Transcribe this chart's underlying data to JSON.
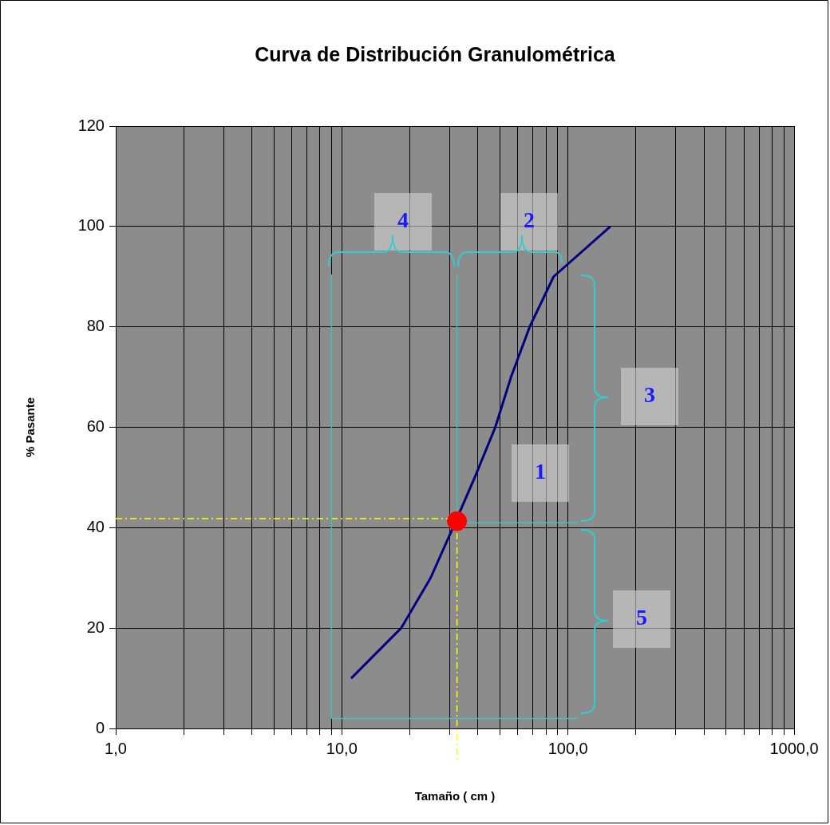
{
  "chart_data": {
    "type": "line",
    "title": "Curva de Distribución Granulométrica",
    "xlabel": "Tamaño ( cm )",
    "ylabel": "% Pasante",
    "log": "x",
    "grid": true,
    "legend": false,
    "xlim": [
      1,
      1000
    ],
    "xticks": [
      {
        "value": 1,
        "label": "1,0"
      },
      {
        "value": 2,
        "label": null
      },
      {
        "value": 3,
        "label": null
      },
      {
        "value": 4,
        "label": null
      },
      {
        "value": 5,
        "label": null
      },
      {
        "value": 6,
        "label": null
      },
      {
        "value": 7,
        "label": null
      },
      {
        "value": 8,
        "label": null
      },
      {
        "value": 9,
        "label": null
      },
      {
        "value": 10,
        "label": "10,0"
      },
      {
        "value": 20,
        "label": null
      },
      {
        "value": 30,
        "label": null
      },
      {
        "value": 40,
        "label": null
      },
      {
        "value": 50,
        "label": null
      },
      {
        "value": 60,
        "label": null
      },
      {
        "value": 70,
        "label": null
      },
      {
        "value": 80,
        "label": null
      },
      {
        "value": 90,
        "label": null
      },
      {
        "value": 100,
        "label": "100,0"
      },
      {
        "value": 200,
        "label": null
      },
      {
        "value": 300,
        "label": null
      },
      {
        "value": 400,
        "label": null
      },
      {
        "value": 500,
        "label": null
      },
      {
        "value": 600,
        "label": null
      },
      {
        "value": 700,
        "label": null
      },
      {
        "value": 800,
        "label": null
      },
      {
        "value": 900,
        "label": null
      },
      {
        "value": 1000,
        "label": "1000,0"
      }
    ],
    "ylim": [
      0,
      120
    ],
    "yticks": [
      0,
      20,
      40,
      60,
      80,
      100,
      120
    ],
    "series": [
      {
        "color": "#000080",
        "x": [
          11,
          18.3,
          24.7,
          31,
          38.7,
          47.7,
          56,
          67.7,
          86.4,
          154
        ],
        "values": [
          10,
          20,
          30,
          40,
          50,
          60,
          70,
          80,
          90,
          100
        ]
      },
      {
        "type": "scatter",
        "color": "#ff0000",
        "x": [
          32.3
        ],
        "values": [
          41.3
        ]
      }
    ],
    "ref_lines": [
      {
        "axis": "y",
        "value": 41.8,
        "color": "#ffff00",
        "line_style": "dashed"
      },
      {
        "axis": "x",
        "value": 32.3,
        "color": "#ffff00",
        "line_style": "dashed"
      },
      {
        "axis": "x",
        "value": 9,
        "color": "#33cccc",
        "line_style": "solid"
      },
      {
        "axis": "x",
        "value": 32.3,
        "color": "#33cccc",
        "line_style": "solid"
      },
      {
        "axis": "y",
        "value": 2,
        "color": "#33cccc",
        "line_style": "solid"
      },
      {
        "axis": "y",
        "value": 41,
        "color": "#33cccc",
        "line_style": "solid"
      }
    ],
    "annotations": [
      "1",
      "2",
      "3",
      "4",
      "5"
    ]
  }
}
